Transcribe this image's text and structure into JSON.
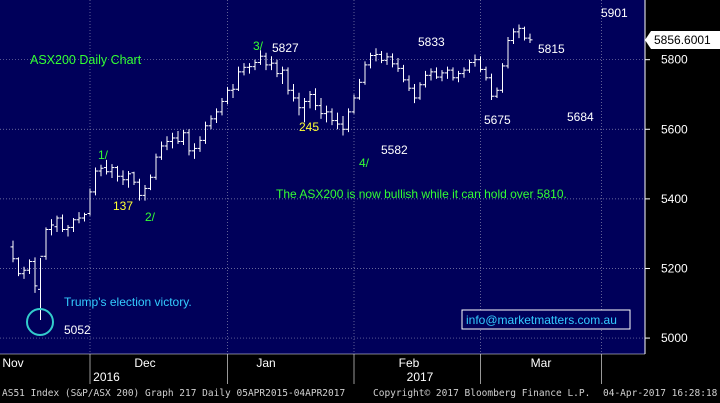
{
  "chart_data": {
    "type": "ohlc",
    "title": "ASX200 Daily Chart",
    "ylim": [
      4960,
      5960
    ],
    "y_ticks": [
      5000,
      5200,
      5400,
      5600,
      5800
    ],
    "y_tick_labels": [
      "5000",
      "5200",
      "5400",
      "5600",
      "5800"
    ],
    "last_price": 5856.6001,
    "last_price_label": "5856.6001",
    "x_month_labels": [
      {
        "label": "Nov",
        "day": 5
      },
      {
        "label": "Dec",
        "day": 29
      },
      {
        "label": "Jan",
        "day": 51
      },
      {
        "label": "Feb",
        "day": 77
      },
      {
        "label": "Mar",
        "day": 101
      }
    ],
    "x_year_labels": [
      {
        "label": "2016",
        "day": 22
      },
      {
        "label": "2017",
        "day": 79
      }
    ],
    "x_gridlines_days": [
      -3,
      19,
      44,
      67,
      90,
      112
    ],
    "series": [
      {
        "name": "AS51 Index",
        "bars": [
          [
            5.0,
            5262,
            5280,
            5218,
            5228
          ],
          [
            6.0,
            5228,
            5232,
            5178,
            5185
          ],
          [
            7.0,
            5185,
            5205,
            5170,
            5195
          ],
          [
            8.0,
            5195,
            5226,
            5184,
            5220
          ],
          [
            9.0,
            5220,
            5232,
            5130,
            5150
          ],
          [
            10.0,
            5140,
            5230,
            5052,
            5235
          ],
          [
            11.0,
            5235,
            5318,
            5225,
            5312
          ],
          [
            12.0,
            5312,
            5342,
            5295,
            5325
          ],
          [
            13.0,
            5320,
            5352,
            5305,
            5345
          ],
          [
            14.0,
            5345,
            5355,
            5305,
            5312
          ],
          [
            15.0,
            5312,
            5325,
            5292,
            5318
          ],
          [
            16.0,
            5318,
            5345,
            5305,
            5340
          ],
          [
            17.0,
            5340,
            5362,
            5330,
            5345
          ],
          [
            18.0,
            5345,
            5360,
            5335,
            5355
          ],
          [
            19.0,
            5358,
            5430,
            5352,
            5420
          ],
          [
            20.0,
            5420,
            5490,
            5410,
            5480
          ],
          [
            21.0,
            5480,
            5498,
            5465,
            5488
          ],
          [
            22.0,
            5490,
            5512,
            5470,
            5478
          ],
          [
            23.0,
            5478,
            5500,
            5460,
            5490
          ],
          [
            24.0,
            5490,
            5495,
            5450,
            5465
          ],
          [
            25.0,
            5465,
            5482,
            5440,
            5455
          ],
          [
            26.0,
            5455,
            5480,
            5432,
            5472
          ],
          [
            27.0,
            5475,
            5478,
            5440,
            5448
          ],
          [
            28.0,
            5448,
            5458,
            5395,
            5410
          ],
          [
            29.0,
            5410,
            5440,
            5395,
            5430
          ],
          [
            30.0,
            5430,
            5470,
            5425,
            5462
          ],
          [
            31.0,
            5462,
            5530,
            5455,
            5520
          ],
          [
            32.0,
            5520,
            5565,
            5512,
            5552
          ],
          [
            33.0,
            5552,
            5580,
            5540,
            5565
          ],
          [
            34.0,
            5565,
            5590,
            5545,
            5575
          ],
          [
            35.0,
            5575,
            5595,
            5558,
            5565
          ],
          [
            36.0,
            5565,
            5598,
            5555,
            5590
          ],
          [
            37.0,
            5590,
            5600,
            5525,
            5538
          ],
          [
            38.0,
            5538,
            5560,
            5515,
            5545
          ],
          [
            39.0,
            5545,
            5580,
            5535,
            5568
          ],
          [
            40.0,
            5568,
            5622,
            5558,
            5610
          ],
          [
            41.0,
            5610,
            5640,
            5600,
            5630
          ],
          [
            42.0,
            5630,
            5660,
            5618,
            5650
          ],
          [
            43.0,
            5650,
            5690,
            5640,
            5680
          ],
          [
            44.0,
            5680,
            5722,
            5672,
            5712
          ],
          [
            45.0,
            5712,
            5730,
            5690,
            5715
          ],
          [
            46.0,
            5715,
            5780,
            5710,
            5765
          ],
          [
            47.0,
            5765,
            5790,
            5755,
            5778
          ],
          [
            48.0,
            5778,
            5790,
            5760,
            5780
          ],
          [
            49.0,
            5780,
            5800,
            5770,
            5792
          ],
          [
            50.0,
            5792,
            5827,
            5785,
            5810
          ],
          [
            51.0,
            5810,
            5820,
            5770,
            5785
          ],
          [
            52.0,
            5785,
            5810,
            5770,
            5790
          ],
          [
            53.0,
            5790,
            5800,
            5750,
            5760
          ],
          [
            54.0,
            5760,
            5780,
            5730,
            5770
          ],
          [
            55.0,
            5770,
            5778,
            5700,
            5712
          ],
          [
            56.0,
            5712,
            5730,
            5680,
            5690
          ],
          [
            57.0,
            5690,
            5705,
            5640,
            5662
          ],
          [
            58.0,
            5662,
            5690,
            5620,
            5680
          ],
          [
            59.0,
            5680,
            5710,
            5660,
            5700
          ],
          [
            60.0,
            5700,
            5718,
            5655,
            5668
          ],
          [
            61.0,
            5668,
            5690,
            5630,
            5645
          ],
          [
            62.0,
            5645,
            5668,
            5620,
            5650
          ],
          [
            63.0,
            5650,
            5660,
            5612,
            5625
          ],
          [
            64.0,
            5625,
            5648,
            5600,
            5615
          ],
          [
            65.0,
            5615,
            5638,
            5582,
            5600
          ],
          [
            66.0,
            5600,
            5660,
            5592,
            5650
          ],
          [
            67.0,
            5650,
            5700,
            5645,
            5690
          ],
          [
            68.0,
            5690,
            5745,
            5685,
            5735
          ],
          [
            69.0,
            5735,
            5795,
            5728,
            5785
          ],
          [
            70.0,
            5785,
            5820,
            5775,
            5812
          ],
          [
            71.0,
            5812,
            5833,
            5795,
            5815
          ],
          [
            72.0,
            5815,
            5825,
            5790,
            5798
          ],
          [
            73.0,
            5798,
            5820,
            5785,
            5808
          ],
          [
            74.0,
            5808,
            5818,
            5778,
            5788
          ],
          [
            75.0,
            5788,
            5805,
            5765,
            5775
          ],
          [
            76.0,
            5775,
            5785,
            5735,
            5742
          ],
          [
            77.0,
            5742,
            5755,
            5710,
            5718
          ],
          [
            78.0,
            5718,
            5730,
            5675,
            5690
          ],
          [
            79.0,
            5690,
            5735,
            5685,
            5728
          ],
          [
            80.0,
            5728,
            5768,
            5720,
            5755
          ],
          [
            81.0,
            5755,
            5775,
            5740,
            5765
          ],
          [
            82.0,
            5765,
            5778,
            5745,
            5750
          ],
          [
            83.0,
            5750,
            5770,
            5738,
            5762
          ],
          [
            84.0,
            5762,
            5780,
            5745,
            5770
          ],
          [
            85.0,
            5770,
            5778,
            5740,
            5748
          ],
          [
            86.0,
            5748,
            5768,
            5735,
            5760
          ],
          [
            87.0,
            5760,
            5778,
            5748,
            5770
          ],
          [
            88.0,
            5770,
            5800,
            5762,
            5792
          ],
          [
            89.0,
            5792,
            5815,
            5780,
            5800
          ],
          [
            90.0,
            5800,
            5810,
            5765,
            5772
          ],
          [
            91.0,
            5772,
            5780,
            5740,
            5748
          ],
          [
            92.0,
            5748,
            5760,
            5684,
            5695
          ],
          [
            93.0,
            5695,
            5720,
            5690,
            5712
          ],
          [
            94.0,
            5712,
            5790,
            5705,
            5782
          ],
          [
            95.0,
            5782,
            5865,
            5775,
            5855
          ],
          [
            96.0,
            5855,
            5890,
            5845,
            5880
          ],
          [
            97.0,
            5880,
            5901,
            5862,
            5890
          ],
          [
            98.0,
            5890,
            5895,
            5855,
            5862
          ],
          [
            99.0,
            5862,
            5875,
            5848,
            5857
          ]
        ]
      }
    ],
    "annotations": {
      "peak_labels": [
        "5827",
        "5833",
        "5815",
        "5901"
      ],
      "trough_labels": [
        "5675",
        "5582",
        "5684",
        "5052"
      ],
      "wave_labels": [
        "1/",
        "2/",
        "3/",
        "4/"
      ],
      "yellow_labels": [
        "137",
        "245"
      ],
      "commentary": "The ASX200 is now bullish while it can hold over 5810.",
      "event_note": "Trump's election victory.",
      "contact": "info@marketmatters.com.au"
    },
    "colors": {
      "background": "#00005a",
      "grid": "#8a8ab0",
      "bars": "#ffffff",
      "green_text": "#33ff33",
      "yellow_text": "#ffff33",
      "circle": "#33cccc",
      "price_tag_bg": "#ffffff",
      "price_tag_text": "#000000"
    }
  },
  "footer": {
    "left": "AS51 Index (S&P/ASX 200) Graph 217  Daily 05APR2015-04APR2017",
    "copyright": "Copyright© 2017 Bloomberg Finance L.P.",
    "timestamp": "04-Apr-2017 16:28:18"
  }
}
